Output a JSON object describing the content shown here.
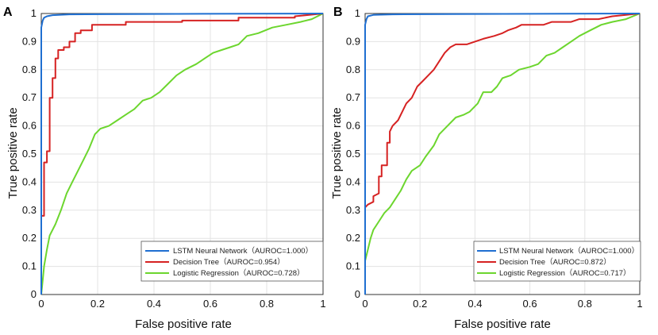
{
  "chart_data": [
    {
      "type": "line",
      "panel": "A",
      "title": "",
      "xlabel": "False positive rate",
      "ylabel": "True positive rate",
      "xlim": [
        0,
        1
      ],
      "ylim": [
        0,
        1
      ],
      "x_ticks": [
        "0",
        "0.2",
        "0.4",
        "0.6",
        "0.8",
        "1"
      ],
      "y_ticks": [
        "0",
        "0.1",
        "0.2",
        "0.3",
        "0.4",
        "0.5",
        "0.6",
        "0.7",
        "0.8",
        "0.9",
        "1"
      ],
      "grid": true,
      "legend_position": "bottom-right",
      "series": [
        {
          "name": "LSTM Neural Network",
          "legend_label": "LSTM Neural Network（AUROC=1.000）",
          "color": "#1f6fd1",
          "points": [
            [
              0,
              0
            ],
            [
              0,
              0.95
            ],
            [
              0.005,
              0.975
            ],
            [
              0.01,
              0.985
            ],
            [
              0.02,
              0.99
            ],
            [
              0.04,
              0.994
            ],
            [
              0.1,
              0.997
            ],
            [
              0.3,
              0.998
            ],
            [
              1,
              1
            ]
          ]
        },
        {
          "name": "Decision Tree",
          "legend_label": "Decision Tree（AUROC=0.954）",
          "color": "#d62222",
          "points": [
            [
              0,
              0
            ],
            [
              0,
              0.28
            ],
            [
              0.01,
              0.28
            ],
            [
              0.01,
              0.47
            ],
            [
              0.02,
              0.47
            ],
            [
              0.02,
              0.51
            ],
            [
              0.03,
              0.51
            ],
            [
              0.03,
              0.7
            ],
            [
              0.04,
              0.7
            ],
            [
              0.04,
              0.77
            ],
            [
              0.05,
              0.77
            ],
            [
              0.05,
              0.84
            ],
            [
              0.06,
              0.84
            ],
            [
              0.06,
              0.87
            ],
            [
              0.08,
              0.87
            ],
            [
              0.08,
              0.88
            ],
            [
              0.1,
              0.88
            ],
            [
              0.1,
              0.9
            ],
            [
              0.12,
              0.9
            ],
            [
              0.12,
              0.93
            ],
            [
              0.14,
              0.93
            ],
            [
              0.14,
              0.94
            ],
            [
              0.18,
              0.94
            ],
            [
              0.18,
              0.96
            ],
            [
              0.3,
              0.96
            ],
            [
              0.3,
              0.97
            ],
            [
              0.5,
              0.97
            ],
            [
              0.5,
              0.975
            ],
            [
              0.7,
              0.975
            ],
            [
              0.7,
              0.985
            ],
            [
              0.9,
              0.985
            ],
            [
              0.9,
              0.99
            ],
            [
              1,
              1
            ]
          ]
        },
        {
          "name": "Logistic Regression",
          "legend_label": "Logistic Regression（AUROC=0.728）",
          "color": "#6cd62e",
          "points": [
            [
              0,
              0
            ],
            [
              0.005,
              0.05
            ],
            [
              0.01,
              0.1
            ],
            [
              0.02,
              0.16
            ],
            [
              0.03,
              0.21
            ],
            [
              0.05,
              0.25
            ],
            [
              0.07,
              0.3
            ],
            [
              0.09,
              0.36
            ],
            [
              0.11,
              0.4
            ],
            [
              0.13,
              0.44
            ],
            [
              0.15,
              0.48
            ],
            [
              0.17,
              0.52
            ],
            [
              0.19,
              0.57
            ],
            [
              0.21,
              0.59
            ],
            [
              0.24,
              0.6
            ],
            [
              0.27,
              0.62
            ],
            [
              0.3,
              0.64
            ],
            [
              0.33,
              0.66
            ],
            [
              0.36,
              0.69
            ],
            [
              0.39,
              0.7
            ],
            [
              0.42,
              0.72
            ],
            [
              0.45,
              0.75
            ],
            [
              0.48,
              0.78
            ],
            [
              0.51,
              0.8
            ],
            [
              0.55,
              0.82
            ],
            [
              0.58,
              0.84
            ],
            [
              0.61,
              0.86
            ],
            [
              0.64,
              0.87
            ],
            [
              0.67,
              0.88
            ],
            [
              0.7,
              0.89
            ],
            [
              0.73,
              0.92
            ],
            [
              0.77,
              0.93
            ],
            [
              0.82,
              0.95
            ],
            [
              0.87,
              0.96
            ],
            [
              0.92,
              0.97
            ],
            [
              0.96,
              0.98
            ],
            [
              1,
              1
            ]
          ]
        }
      ]
    },
    {
      "type": "line",
      "panel": "B",
      "title": "",
      "xlabel": "False positive rate",
      "ylabel": "True positive rate",
      "xlim": [
        0,
        1
      ],
      "ylim": [
        0,
        1
      ],
      "x_ticks": [
        "0",
        "0.2",
        "0.4",
        "0.6",
        "0.8",
        "1"
      ],
      "y_ticks": [
        "0",
        "0.1",
        "0.2",
        "0.3",
        "0.4",
        "0.5",
        "0.6",
        "0.7",
        "0.8",
        "0.9",
        "1"
      ],
      "grid": true,
      "legend_position": "bottom-right",
      "series": [
        {
          "name": "LSTM Neural Network",
          "legend_label": "LSTM Neural Network（AUROC=1.000）",
          "color": "#1f6fd1",
          "points": [
            [
              0,
              0
            ],
            [
              0,
              0.96
            ],
            [
              0.005,
              0.98
            ],
            [
              0.01,
              0.99
            ],
            [
              0.03,
              0.995
            ],
            [
              0.1,
              0.997
            ],
            [
              0.3,
              0.998
            ],
            [
              1,
              1
            ]
          ]
        },
        {
          "name": "Decision Tree",
          "legend_label": "Decision Tree（AUROC=0.872）",
          "color": "#d62222",
          "points": [
            [
              0,
              0
            ],
            [
              0,
              0.31
            ],
            [
              0.01,
              0.32
            ],
            [
              0.03,
              0.33
            ],
            [
              0.03,
              0.35
            ],
            [
              0.05,
              0.36
            ],
            [
              0.05,
              0.42
            ],
            [
              0.06,
              0.42
            ],
            [
              0.06,
              0.46
            ],
            [
              0.08,
              0.46
            ],
            [
              0.08,
              0.54
            ],
            [
              0.09,
              0.54
            ],
            [
              0.09,
              0.58
            ],
            [
              0.1,
              0.6
            ],
            [
              0.12,
              0.62
            ],
            [
              0.14,
              0.66
            ],
            [
              0.15,
              0.68
            ],
            [
              0.17,
              0.7
            ],
            [
              0.19,
              0.74
            ],
            [
              0.21,
              0.76
            ],
            [
              0.23,
              0.78
            ],
            [
              0.25,
              0.8
            ],
            [
              0.27,
              0.83
            ],
            [
              0.29,
              0.86
            ],
            [
              0.31,
              0.88
            ],
            [
              0.33,
              0.89
            ],
            [
              0.37,
              0.89
            ],
            [
              0.4,
              0.9
            ],
            [
              0.43,
              0.91
            ],
            [
              0.47,
              0.92
            ],
            [
              0.5,
              0.93
            ],
            [
              0.52,
              0.94
            ],
            [
              0.55,
              0.95
            ],
            [
              0.57,
              0.96
            ],
            [
              0.65,
              0.96
            ],
            [
              0.68,
              0.97
            ],
            [
              0.75,
              0.97
            ],
            [
              0.78,
              0.98
            ],
            [
              0.85,
              0.98
            ],
            [
              0.9,
              0.99
            ],
            [
              1,
              1
            ]
          ]
        },
        {
          "name": "Logistic Regression",
          "legend_label": "Logistic Regression（AUROC=0.717）",
          "color": "#6cd62e",
          "points": [
            [
              0,
              0
            ],
            [
              0,
              0.12
            ],
            [
              0.01,
              0.16
            ],
            [
              0.02,
              0.2
            ],
            [
              0.03,
              0.23
            ],
            [
              0.05,
              0.26
            ],
            [
              0.07,
              0.29
            ],
            [
              0.09,
              0.31
            ],
            [
              0.11,
              0.34
            ],
            [
              0.13,
              0.37
            ],
            [
              0.15,
              0.41
            ],
            [
              0.17,
              0.44
            ],
            [
              0.2,
              0.46
            ],
            [
              0.22,
              0.49
            ],
            [
              0.25,
              0.53
            ],
            [
              0.27,
              0.57
            ],
            [
              0.3,
              0.6
            ],
            [
              0.33,
              0.63
            ],
            [
              0.36,
              0.64
            ],
            [
              0.38,
              0.65
            ],
            [
              0.41,
              0.68
            ],
            [
              0.43,
              0.72
            ],
            [
              0.46,
              0.72
            ],
            [
              0.48,
              0.74
            ],
            [
              0.5,
              0.77
            ],
            [
              0.53,
              0.78
            ],
            [
              0.56,
              0.8
            ],
            [
              0.6,
              0.81
            ],
            [
              0.63,
              0.82
            ],
            [
              0.66,
              0.85
            ],
            [
              0.69,
              0.86
            ],
            [
              0.72,
              0.88
            ],
            [
              0.75,
              0.9
            ],
            [
              0.78,
              0.92
            ],
            [
              0.82,
              0.94
            ],
            [
              0.86,
              0.96
            ],
            [
              0.9,
              0.97
            ],
            [
              0.95,
              0.98
            ],
            [
              1,
              1
            ]
          ]
        }
      ]
    }
  ]
}
